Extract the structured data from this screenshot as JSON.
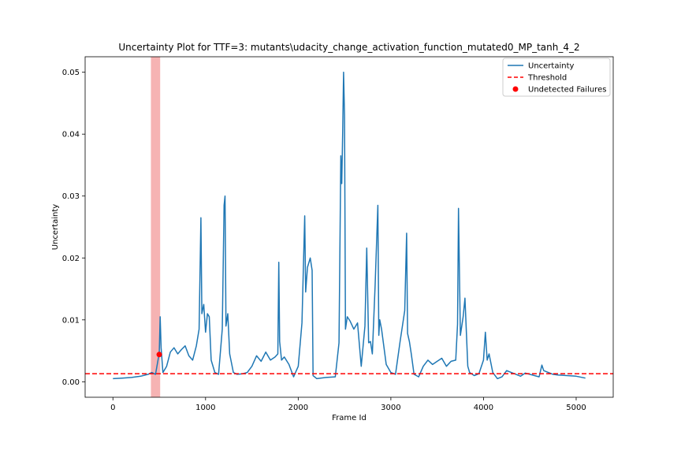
{
  "chart_data": {
    "type": "line",
    "title": "Uncertainty Plot for TTF=3: mutants\\udacity_change_activation_function_mutated0_MP_tanh_4_2",
    "xlabel": "Frame Id",
    "ylabel": "Uncertainty",
    "xlim": [
      -300,
      5400
    ],
    "ylim": [
      -0.0025,
      0.0525
    ],
    "x_ticks": [
      0,
      1000,
      2000,
      3000,
      4000,
      5000
    ],
    "x_tick_labels": [
      "0",
      "1000",
      "2000",
      "3000",
      "4000",
      "5000"
    ],
    "y_ticks": [
      0.0,
      0.01,
      0.02,
      0.03,
      0.04,
      0.05
    ],
    "y_tick_labels": [
      "0.00",
      "0.01",
      "0.02",
      "0.03",
      "0.04",
      "0.05"
    ],
    "grid": false,
    "legend_placement": "top-right",
    "legend": [
      {
        "label": "Uncertainty",
        "kind": "line",
        "color": "#1f77b4"
      },
      {
        "label": "Threshold",
        "kind": "dashed-line",
        "color": "#ff0000"
      },
      {
        "label": "Undetected Failures",
        "kind": "marker",
        "color": "#ff0000"
      }
    ],
    "threshold": 0.0013,
    "shaded_region": {
      "x0": 410,
      "x1": 510,
      "color": "#f4a6a6"
    },
    "undetected_failures": [
      {
        "x": 500,
        "y": 0.0044
      }
    ],
    "series": [
      {
        "name": "Uncertainty",
        "color": "#1f77b4",
        "x": [
          0,
          100,
          200,
          300,
          380,
          420,
          460,
          490,
          500,
          510,
          520,
          540,
          580,
          620,
          660,
          700,
          740,
          780,
          820,
          860,
          900,
          930,
          950,
          960,
          980,
          1000,
          1020,
          1040,
          1060,
          1100,
          1140,
          1180,
          1200,
          1210,
          1220,
          1240,
          1260,
          1300,
          1340,
          1400,
          1450,
          1500,
          1550,
          1600,
          1650,
          1700,
          1750,
          1780,
          1790,
          1800,
          1820,
          1850,
          1900,
          1950,
          2000,
          2040,
          2070,
          2080,
          2100,
          2130,
          2150,
          2160,
          2200,
          2300,
          2400,
          2440,
          2460,
          2470,
          2480,
          2490,
          2500,
          2510,
          2530,
          2560,
          2600,
          2640,
          2680,
          2720,
          2740,
          2760,
          2780,
          2800,
          2830,
          2860,
          2870,
          2880,
          2900,
          2950,
          3000,
          3050,
          3100,
          3150,
          3170,
          3180,
          3200,
          3220,
          3250,
          3300,
          3350,
          3400,
          3450,
          3500,
          3550,
          3600,
          3650,
          3700,
          3720,
          3730,
          3750,
          3780,
          3800,
          3830,
          3850,
          3900,
          3950,
          4000,
          4020,
          4040,
          4060,
          4100,
          4150,
          4200,
          4250,
          4300,
          4350,
          4400,
          4450,
          4500,
          4550,
          4600,
          4630,
          4650,
          4700,
          4750,
          4800,
          4900,
          5000,
          5100
        ],
        "y": [
          0.0005,
          0.0006,
          0.0007,
          0.0009,
          0.0012,
          0.0015,
          0.0012,
          0.0038,
          0.0044,
          0.0105,
          0.0055,
          0.0015,
          0.0025,
          0.0048,
          0.0055,
          0.0045,
          0.0052,
          0.0058,
          0.0042,
          0.0035,
          0.0058,
          0.0085,
          0.0265,
          0.011,
          0.0125,
          0.008,
          0.011,
          0.0105,
          0.0035,
          0.0015,
          0.0012,
          0.0085,
          0.0285,
          0.03,
          0.009,
          0.011,
          0.0045,
          0.0015,
          0.0012,
          0.0013,
          0.0015,
          0.0025,
          0.0042,
          0.0033,
          0.0048,
          0.0035,
          0.004,
          0.0045,
          0.0193,
          0.0065,
          0.0035,
          0.004,
          0.0028,
          0.0008,
          0.0025,
          0.0095,
          0.0268,
          0.0145,
          0.0185,
          0.02,
          0.018,
          0.001,
          0.0005,
          0.0007,
          0.0008,
          0.0063,
          0.0365,
          0.032,
          0.0405,
          0.05,
          0.043,
          0.0085,
          0.0105,
          0.0098,
          0.0085,
          0.0095,
          0.0025,
          0.009,
          0.0216,
          0.0063,
          0.0065,
          0.0045,
          0.0155,
          0.0285,
          0.0075,
          0.01,
          0.0085,
          0.0028,
          0.0015,
          0.0012,
          0.0065,
          0.0115,
          0.024,
          0.0078,
          0.0065,
          0.0045,
          0.0012,
          0.0008,
          0.0025,
          0.0035,
          0.0028,
          0.0033,
          0.0038,
          0.0025,
          0.0033,
          0.0035,
          0.0093,
          0.028,
          0.0075,
          0.0105,
          0.0135,
          0.0025,
          0.0015,
          0.001,
          0.0013,
          0.0035,
          0.008,
          0.0035,
          0.0045,
          0.0015,
          0.0005,
          0.0008,
          0.0018,
          0.0015,
          0.0012,
          0.0009,
          0.0014,
          0.0012,
          0.001,
          0.0008,
          0.0027,
          0.0018,
          0.0015,
          0.0012,
          0.0011,
          0.001,
          0.0009,
          0.0006
        ]
      }
    ]
  }
}
